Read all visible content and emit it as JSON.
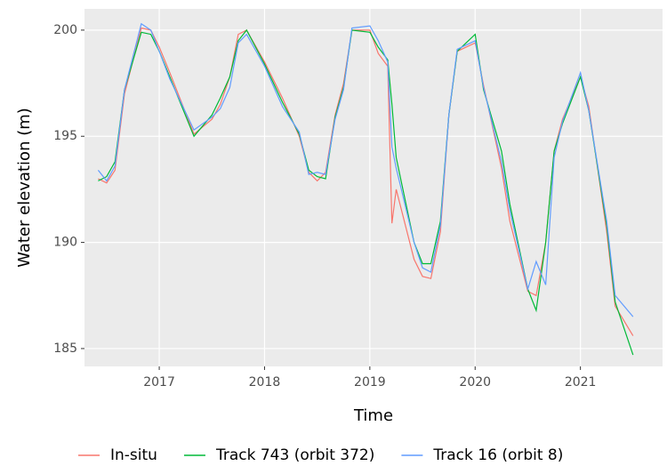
{
  "chart_data": {
    "type": "line",
    "xlabel": "Time",
    "ylabel": "Water elevation (m)",
    "xlim": [
      2016.29,
      2021.78
    ],
    "ylim": [
      184.16,
      201.0
    ],
    "xticks": [
      2017,
      2018,
      2019,
      2020,
      2021
    ],
    "yticks": [
      185,
      190,
      195,
      200
    ],
    "grid": true,
    "legend": "bottom",
    "x": [
      2016.42,
      2016.5,
      2016.58,
      2016.67,
      2016.83,
      2016.92,
      2017.0,
      2017.1,
      2017.33,
      2017.5,
      2017.58,
      2017.67,
      2017.75,
      2017.83,
      2018.0,
      2018.17,
      2018.33,
      2018.42,
      2018.5,
      2018.58,
      2018.67,
      2018.75,
      2018.83,
      2019.0,
      2019.08,
      2019.17,
      2019.21,
      2019.25,
      2019.42,
      2019.5,
      2019.58,
      2019.67,
      2019.75,
      2019.83,
      2020.0,
      2020.08,
      2020.25,
      2020.33,
      2020.5,
      2020.58,
      2020.67,
      2020.75,
      2020.83,
      2021.0,
      2021.08,
      2021.25,
      2021.33,
      2021.5
    ],
    "series": [
      {
        "name": "In-situ",
        "color": "#f8766d",
        "values": [
          193.0,
          192.8,
          193.4,
          197.0,
          200.1,
          200.0,
          199.2,
          198.0,
          195.1,
          195.8,
          196.5,
          197.8,
          199.8,
          200.0,
          198.5,
          196.8,
          195.0,
          193.3,
          192.9,
          193.3,
          196.0,
          197.5,
          200.0,
          200.0,
          198.9,
          198.3,
          190.9,
          192.5,
          189.2,
          188.4,
          188.3,
          190.5,
          196.0,
          199.0,
          199.4,
          197.4,
          193.5,
          191.0,
          187.7,
          187.5,
          190.0,
          194.3,
          195.8,
          197.8,
          196.4,
          190.5,
          187.0,
          185.6
        ]
      },
      {
        "name": "Track 743 (orbit 372)",
        "color": "#00ba38",
        "values": [
          192.9,
          193.1,
          193.8,
          197.2,
          199.9,
          199.8,
          199.0,
          197.8,
          195.0,
          196.0,
          196.8,
          197.8,
          199.5,
          200.0,
          198.4,
          196.6,
          195.1,
          193.4,
          193.1,
          193.0,
          195.9,
          197.3,
          200.0,
          199.9,
          199.2,
          198.6,
          196.5,
          194.0,
          190.0,
          189.0,
          189.0,
          191.0,
          196.0,
          199.0,
          199.8,
          197.2,
          194.3,
          191.8,
          187.8,
          186.8,
          190.0,
          194.3,
          195.6,
          197.8,
          196.2,
          190.8,
          187.2,
          184.7
        ]
      },
      {
        "name": "Track 16 (orbit 8)",
        "color": "#619cff",
        "values": [
          193.4,
          192.9,
          193.6,
          197.2,
          200.3,
          200.0,
          199.0,
          197.7,
          195.3,
          195.9,
          196.3,
          197.3,
          199.4,
          199.8,
          198.3,
          196.4,
          195.2,
          193.2,
          193.3,
          193.2,
          195.8,
          197.2,
          200.1,
          200.2,
          199.5,
          198.5,
          194.5,
          193.5,
          190.0,
          188.8,
          188.6,
          190.8,
          196.0,
          199.1,
          199.5,
          197.3,
          193.8,
          191.5,
          187.8,
          189.1,
          188.0,
          194.0,
          195.7,
          198.0,
          196.2,
          191.0,
          187.5,
          186.5
        ]
      }
    ]
  }
}
